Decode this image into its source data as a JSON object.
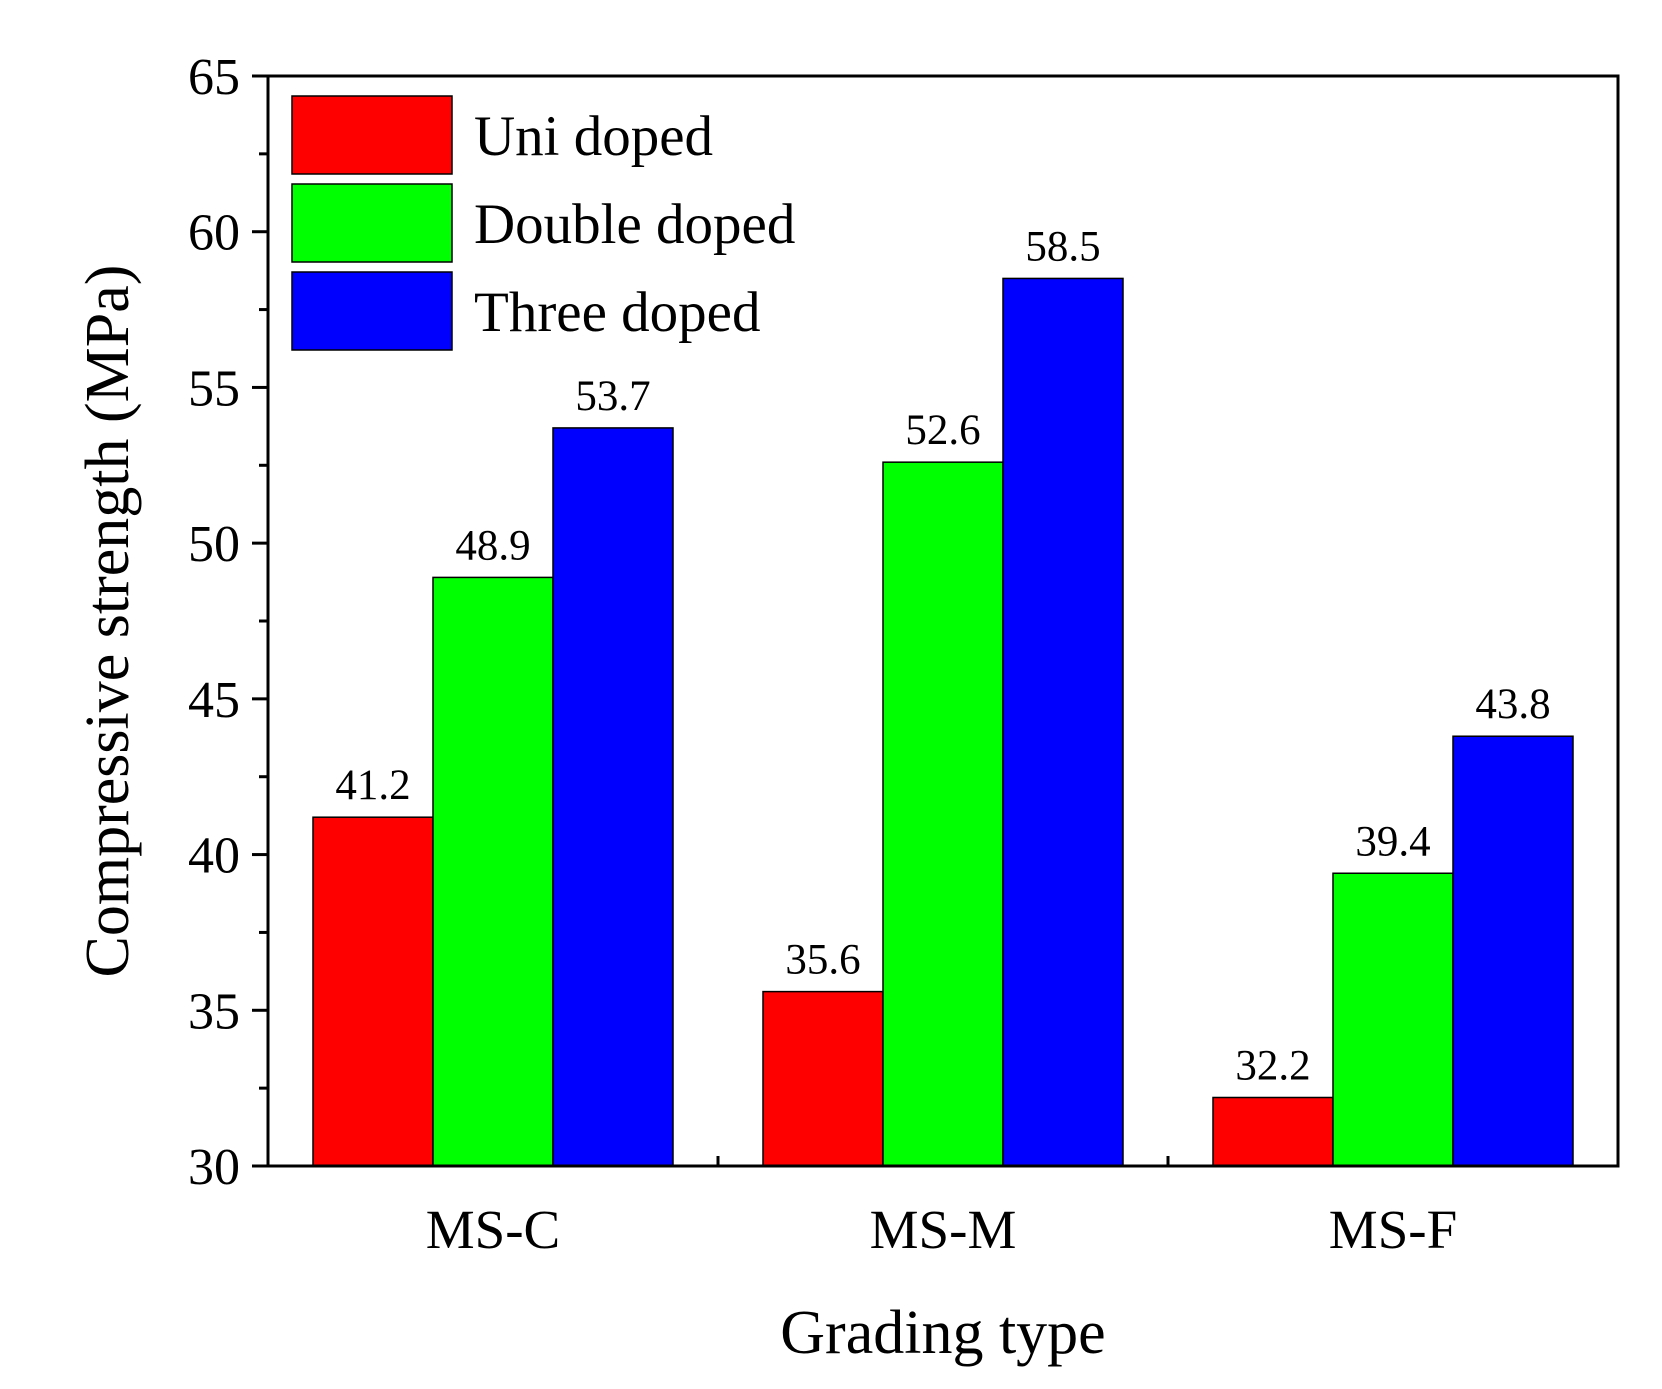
{
  "chart_data": {
    "type": "bar",
    "title": "",
    "xlabel": "Grading type",
    "ylabel": "Compressive strength (MPa)",
    "categories": [
      "MS-C",
      "MS-M",
      "MS-F"
    ],
    "series": [
      {
        "name": "Uni doped",
        "color": "#ff0000",
        "values": [
          41.2,
          35.6,
          32.2
        ]
      },
      {
        "name": "Double doped",
        "color": "#00ff00",
        "values": [
          48.9,
          52.6,
          39.4
        ]
      },
      {
        "name": "Three doped",
        "color": "#0000ff",
        "values": [
          53.7,
          58.5,
          43.8
        ]
      }
    ],
    "ylim": [
      30,
      65
    ],
    "yticks": [
      30,
      35,
      40,
      45,
      50,
      55,
      60,
      65
    ],
    "y_minor_step": 2.5,
    "grid": false,
    "legend_position": "top-left",
    "data_labels": true
  }
}
